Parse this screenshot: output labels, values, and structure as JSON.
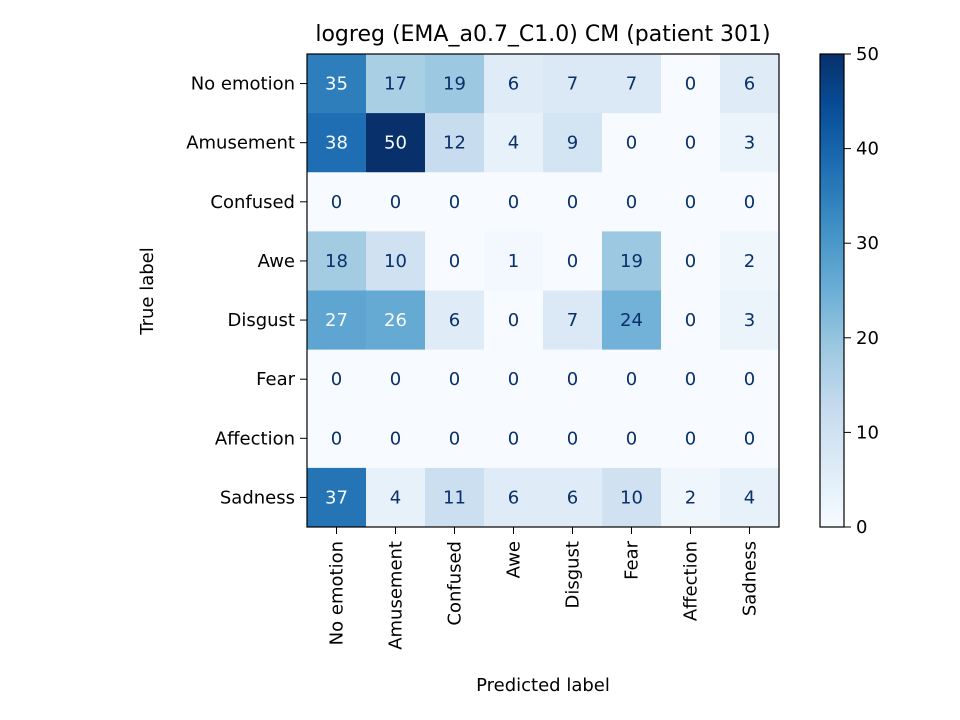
{
  "chart_data": {
    "type": "heatmap",
    "title": "logreg (EMA_a0.7_C1.0) CM (patient 301)",
    "xlabel": "Predicted label",
    "ylabel": "True label",
    "x_categories": [
      "No emotion",
      "Amusement",
      "Confused",
      "Awe",
      "Disgust",
      "Fear",
      "Affection",
      "Sadness"
    ],
    "y_categories": [
      "No emotion",
      "Amusement",
      "Confused",
      "Awe",
      "Disgust",
      "Fear",
      "Affection",
      "Sadness"
    ],
    "values": [
      [
        35,
        17,
        19,
        6,
        7,
        7,
        0,
        6
      ],
      [
        38,
        50,
        12,
        4,
        9,
        0,
        0,
        3
      ],
      [
        0,
        0,
        0,
        0,
        0,
        0,
        0,
        0
      ],
      [
        18,
        10,
        0,
        1,
        0,
        19,
        0,
        2
      ],
      [
        27,
        26,
        6,
        0,
        7,
        24,
        0,
        3
      ],
      [
        0,
        0,
        0,
        0,
        0,
        0,
        0,
        0
      ],
      [
        0,
        0,
        0,
        0,
        0,
        0,
        0,
        0
      ],
      [
        37,
        4,
        11,
        6,
        6,
        10,
        2,
        4
      ]
    ],
    "colormap": "Blues",
    "vmin": 0,
    "vmax": 50,
    "colorbar_ticks": [
      0,
      10,
      20,
      30,
      40,
      50
    ]
  }
}
